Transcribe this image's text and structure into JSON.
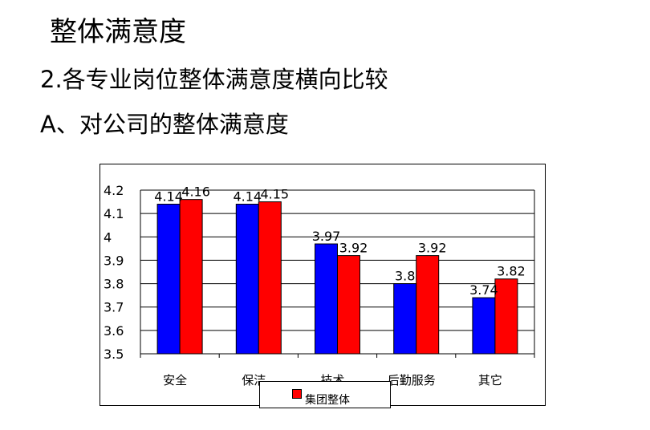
{
  "slide": {
    "title": "整体满意度",
    "subtitle": "2.各专业岗位整体满意度横向比较",
    "section": "A、对公司的整体满意度"
  },
  "colors": {
    "blue_series": "#0000ff",
    "red_series": "#ff0000",
    "grid": "#000000"
  },
  "chart_data": {
    "type": "bar",
    "categories": [
      "安全",
      "保洁",
      "技术",
      "后勤服务",
      "其它"
    ],
    "series": [
      {
        "values": [
          4.14,
          4.14,
          3.97,
          3.8,
          3.74
        ],
        "labels": [
          "4.14",
          "4.14",
          "3.97",
          "3.8",
          "3.74"
        ],
        "color": "#0000ff"
      },
      {
        "name": "集团整体",
        "values": [
          4.16,
          4.15,
          3.92,
          3.92,
          3.82
        ],
        "labels": [
          "4.16",
          "4.15",
          "3.92",
          "3.92",
          "3.82"
        ],
        "color": "#ff0000"
      }
    ],
    "ylim": [
      3.5,
      4.2
    ],
    "y_ticks": [
      "3.5",
      "3.6",
      "3.7",
      "3.8",
      "3.9",
      "4",
      "4.1",
      "4.2"
    ],
    "grid": true,
    "legend": {
      "position": "bottom",
      "entries": [
        "集团整体"
      ]
    }
  }
}
